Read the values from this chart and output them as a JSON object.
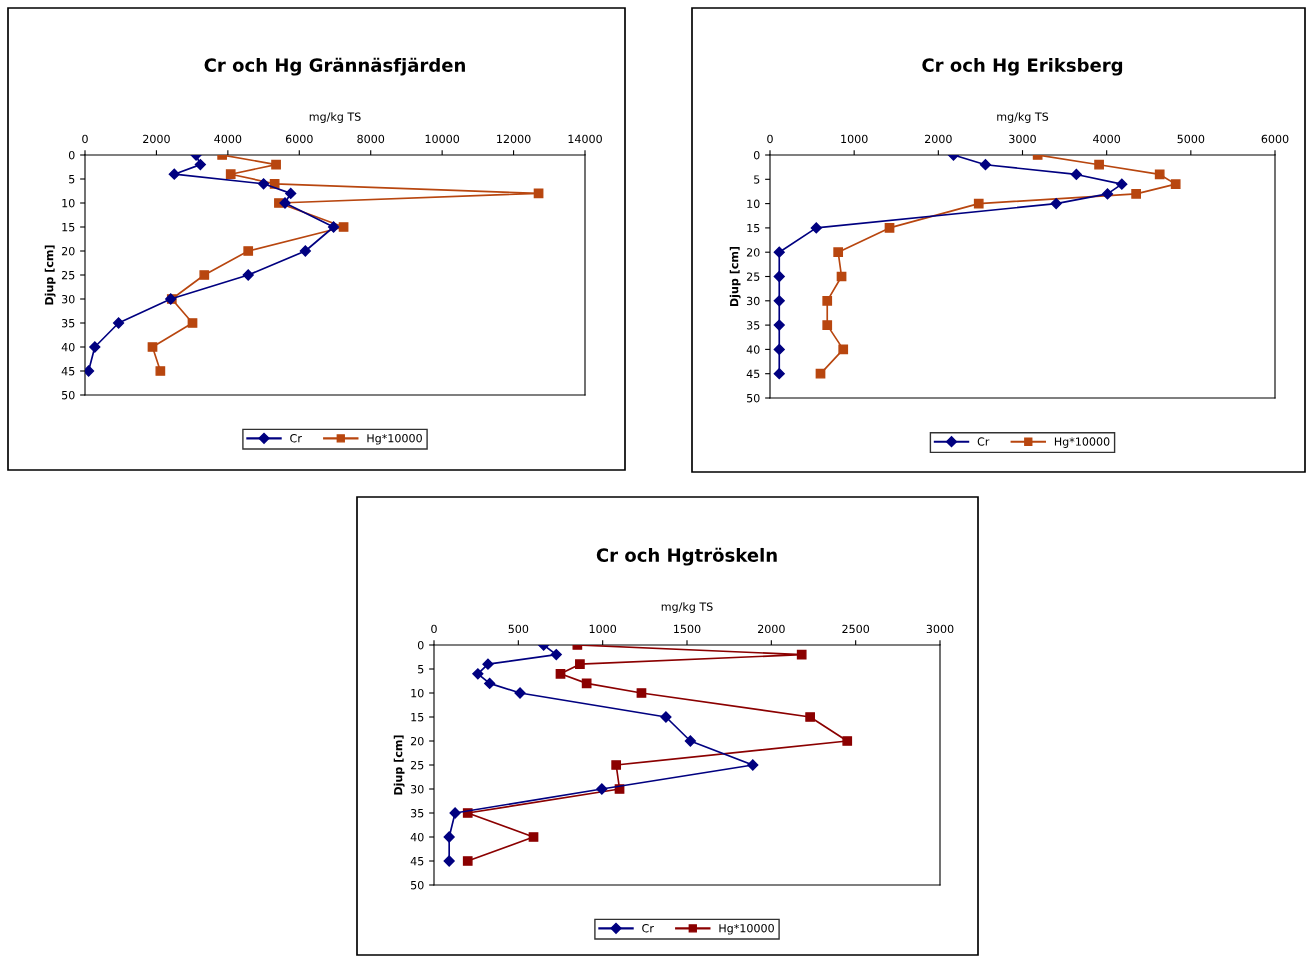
{
  "chart_data": [
    {
      "type": "line",
      "title": "Cr och Hg Grännäsfjärden",
      "xlabel": "mg/kg TS",
      "ylabel": "Djup [cm]",
      "xlim": [
        0,
        14000
      ],
      "xticks": [
        0,
        2000,
        4000,
        6000,
        8000,
        10000,
        12000,
        14000
      ],
      "ylim": [
        50,
        0
      ],
      "yticks": [
        0,
        5,
        10,
        15,
        20,
        25,
        30,
        35,
        40,
        45,
        50
      ],
      "grid": false,
      "legend": "bottom",
      "line_style": "solid",
      "series": [
        {
          "name": "Cr",
          "color": "#000080",
          "marker": "diamond",
          "x": [
            3110,
            3230,
            2500,
            5000,
            5760,
            5600,
            6960,
            6170,
            4570,
            2400,
            940,
            275,
            100
          ],
          "values": [
            0,
            2,
            4,
            6,
            8,
            10,
            15,
            20,
            25,
            30,
            35,
            40,
            45
          ]
        },
        {
          "name": "Hg*10000",
          "color": "#b8460f",
          "marker": "square",
          "x": [
            3840,
            5350,
            4080,
            5310,
            12700,
            5430,
            7240,
            4570,
            3340,
            2430,
            3010,
            1890,
            2110
          ],
          "values": [
            0,
            2,
            4,
            6,
            8,
            10,
            15,
            20,
            25,
            30,
            35,
            40,
            45
          ]
        }
      ]
    },
    {
      "type": "line",
      "title": "Cr och Hg Eriksberg",
      "xlabel": "mg/kg TS",
      "ylabel": "Djup [cm]",
      "xlim": [
        0,
        6000
      ],
      "xticks": [
        0,
        1000,
        2000,
        3000,
        4000,
        5000,
        6000
      ],
      "ylim": [
        50,
        0
      ],
      "yticks": [
        0,
        5,
        10,
        15,
        20,
        25,
        30,
        35,
        40,
        45,
        50
      ],
      "grid": false,
      "legend": "bottom",
      "line_style": "solid",
      "series": [
        {
          "name": "Cr",
          "color": "#000080",
          "marker": "diamond",
          "x": [
            2180,
            2560,
            3640,
            4180,
            4010,
            3400,
            550,
            110,
            110,
            110,
            110,
            110,
            110
          ],
          "values": [
            0,
            2,
            4,
            6,
            8,
            10,
            15,
            20,
            25,
            30,
            35,
            40,
            45
          ]
        },
        {
          "name": "Hg*10000",
          "color": "#b8460f",
          "marker": "square",
          "x": [
            3180,
            3910,
            4630,
            4820,
            4350,
            2480,
            1420,
            810,
            850,
            680,
            680,
            870,
            600
          ],
          "values": [
            0,
            2,
            4,
            6,
            8,
            10,
            15,
            20,
            25,
            30,
            35,
            40,
            45
          ]
        }
      ]
    },
    {
      "type": "line",
      "title": "Cr och Hgtröskeln",
      "xlabel": "mg/kg TS",
      "ylabel": "Djup [cm]",
      "xlim": [
        0,
        3000
      ],
      "xticks": [
        0,
        500,
        1000,
        1500,
        2000,
        2500,
        3000
      ],
      "ylim": [
        50,
        0
      ],
      "yticks": [
        0,
        5,
        10,
        15,
        20,
        25,
        30,
        35,
        40,
        45,
        50
      ],
      "grid": false,
      "legend": "bottom",
      "line_style": "solid",
      "series": [
        {
          "name": "Cr",
          "color": "#000080",
          "marker": "diamond",
          "x": [
            650,
            725,
            320,
            260,
            330,
            510,
            1375,
            1520,
            1890,
            995,
            125,
            90,
            90
          ],
          "values": [
            0,
            2,
            4,
            6,
            8,
            10,
            15,
            20,
            25,
            30,
            35,
            40,
            45
          ]
        },
        {
          "name": "Hg*10000",
          "color": "#8b0000",
          "marker": "square",
          "x": [
            850,
            2180,
            865,
            750,
            905,
            1230,
            2230,
            2450,
            1080,
            1100,
            200,
            590,
            200
          ],
          "values": [
            0,
            2,
            4,
            6,
            8,
            10,
            15,
            20,
            25,
            30,
            35,
            40,
            45
          ]
        }
      ]
    }
  ]
}
